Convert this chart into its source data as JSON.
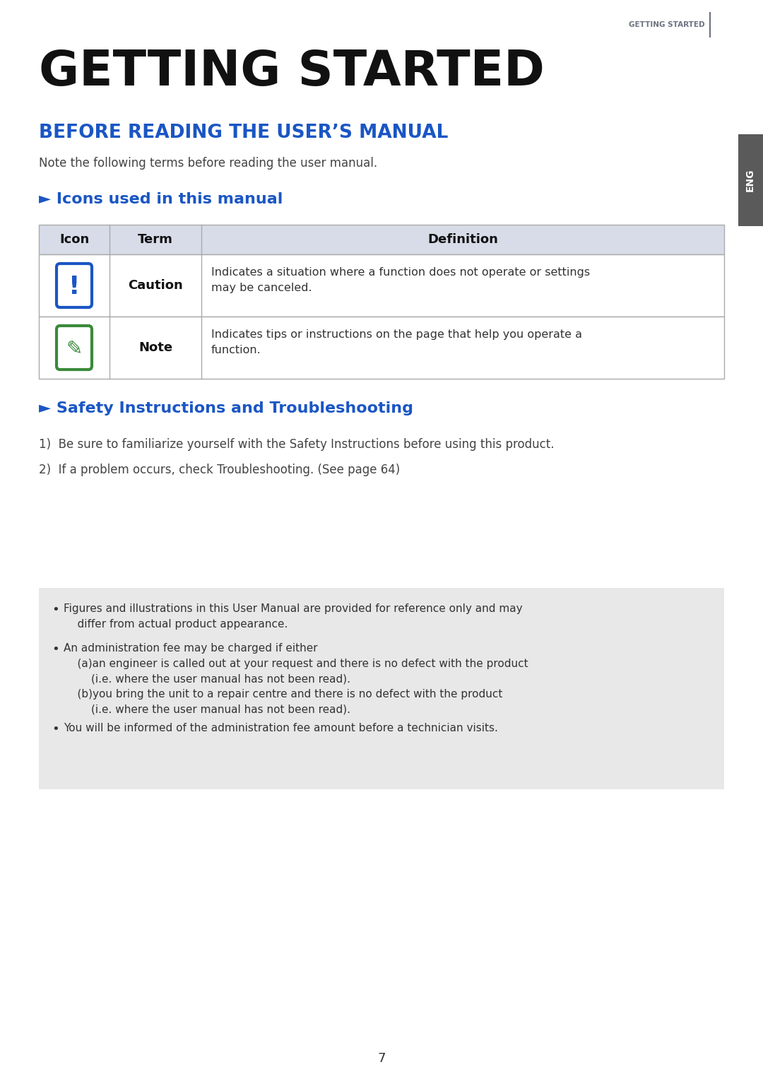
{
  "page_bg": "#ffffff",
  "header_text": "GETTING STARTED",
  "header_color": "#6b7280",
  "header_line_color": "#6b7280",
  "title_text": "GETTING STARTED",
  "title_color": "#111111",
  "section1_title": "BEFORE READING THE USER’S MANUAL",
  "section1_color": "#1a56c4",
  "intro_text": "Note the following terms before reading the user manual.",
  "intro_color": "#444444",
  "subsection1_title": "► Icons used in this manual",
  "subsection1_color": "#1a56c4",
  "table_header_bg": "#d8dce8",
  "table_header_color": "#111111",
  "table_border_color": "#aaaaaa",
  "table_row_bg": "#ffffff",
  "table_headers": [
    "Icon",
    "Term",
    "Definition"
  ],
  "table_rows": [
    {
      "term": "Caution",
      "definition": "Indicates a situation where a function does not operate or settings\nmay be canceled.",
      "icon_type": "caution"
    },
    {
      "term": "Note",
      "definition": "Indicates tips or instructions on the page that help you operate a\nfunction.",
      "icon_type": "note"
    }
  ],
  "subsection2_title": "► Safety Instructions and Troubleshooting",
  "subsection2_color": "#1a56c4",
  "numbered_items": [
    "1)  Be sure to familiarize yourself with the Safety Instructions before using this product.",
    "2)  If a problem occurs, check Troubleshooting. (See page 64)"
  ],
  "numbered_color": "#444444",
  "notice_bg": "#e8e8e8",
  "notice_items": [
    "Figures and illustrations in this User Manual are provided for reference only and may\n    differ from actual product appearance.",
    "An administration fee may be charged if either\n    (a)an engineer is called out at your request and there is no defect with the product\n        (i.e. where the user manual has not been read).\n    (b)you bring the unit to a repair centre and there is no defect with the product\n        (i.e. where the user manual has not been read).",
    "You will be informed of the administration fee amount before a technician visits."
  ],
  "notice_color": "#333333",
  "eng_tab_color": "#5a5a5a",
  "eng_tab_text_color": "#ffffff",
  "page_number": "7",
  "page_number_color": "#333333",
  "caution_icon_color": "#1a56c4",
  "note_icon_color": "#3a8a3a"
}
